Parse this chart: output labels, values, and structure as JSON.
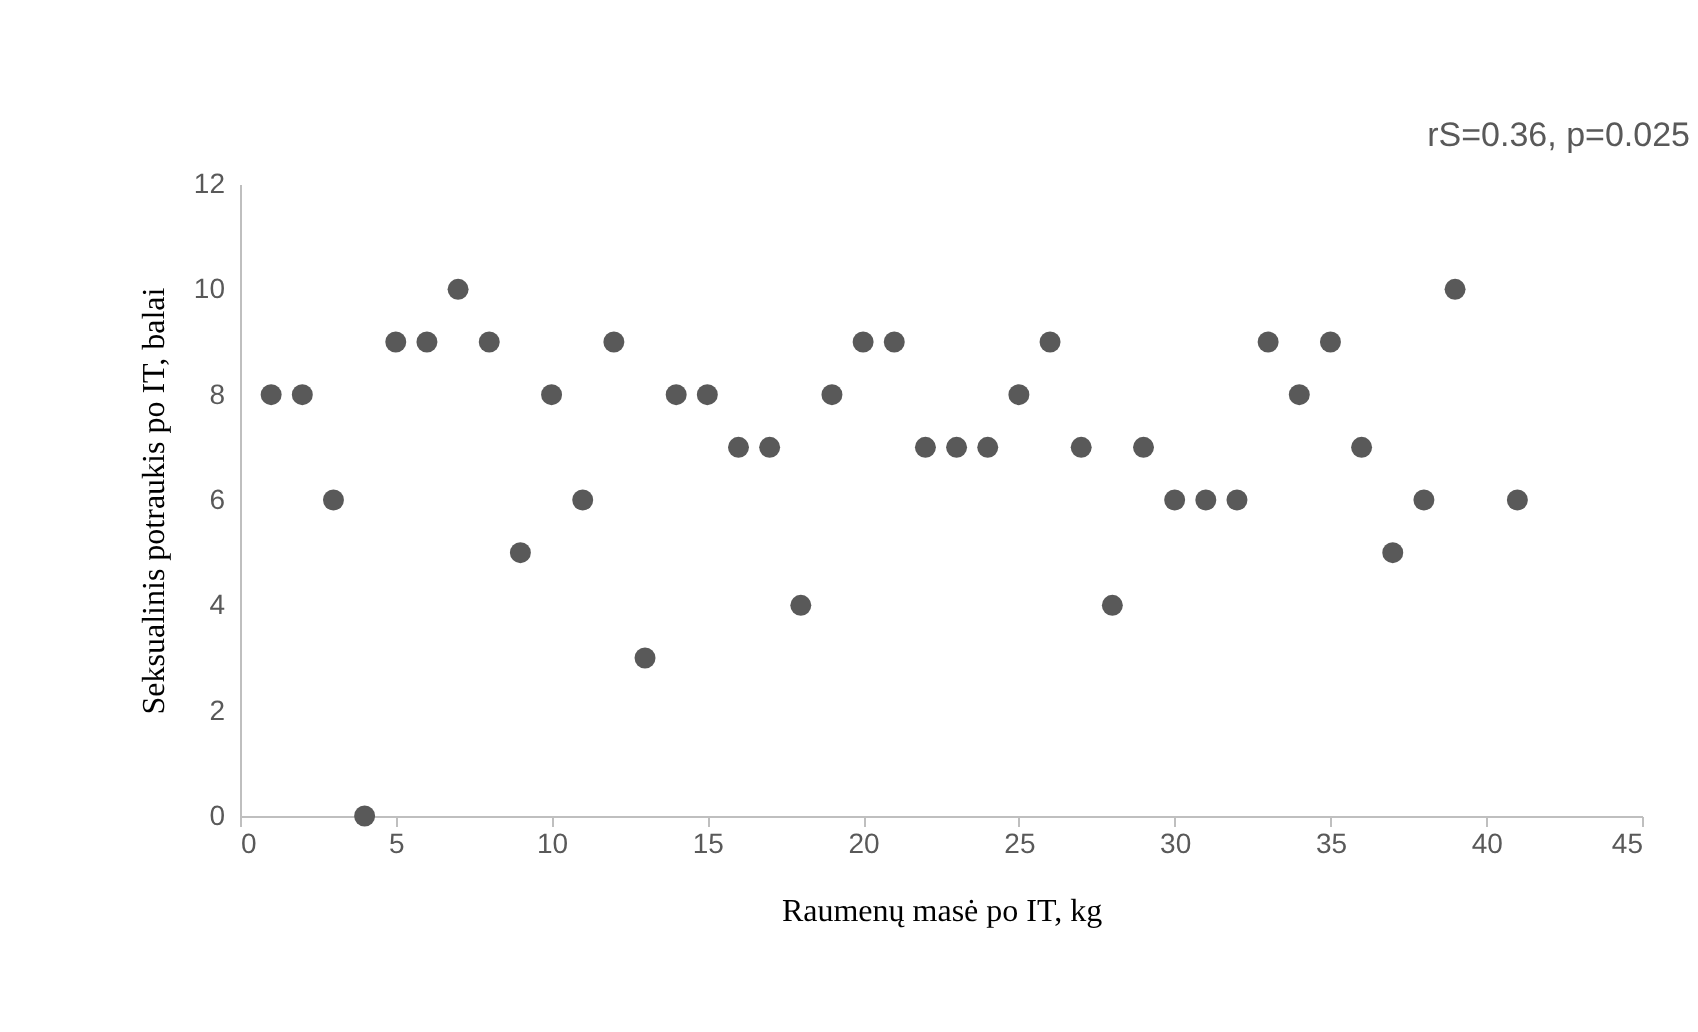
{
  "chart_data": {
    "type": "scatter",
    "xlabel": "Raumenų masė po IT, kg",
    "ylabel": "Seksualinis potraukis po IT, balai",
    "annotations": [
      "rS=0.36, p=0.025"
    ],
    "x": [
      1,
      2,
      3,
      4,
      5,
      6,
      7,
      8,
      9,
      10,
      11,
      12,
      13,
      14,
      15,
      16,
      17,
      18,
      19,
      20,
      21,
      22,
      23,
      24,
      25,
      26,
      27,
      28,
      29,
      30,
      31,
      32,
      33,
      34,
      35,
      36,
      37,
      38,
      39,
      41
    ],
    "series": [
      {
        "color": "#595959",
        "values": [
          8,
          8,
          6,
          0,
          9,
          9,
          10,
          9,
          5,
          8,
          6,
          9,
          3,
          8,
          8,
          7,
          7,
          4,
          8,
          9,
          9,
          7,
          7,
          7,
          8,
          9,
          7,
          4,
          7,
          6,
          6,
          6,
          9,
          8,
          9,
          7,
          5,
          6,
          10,
          6
        ]
      }
    ],
    "xlim": [
      0,
      45
    ],
    "xticks": [
      0,
      5,
      10,
      15,
      20,
      25,
      30,
      35,
      40,
      45
    ],
    "ylim": [
      0,
      12
    ],
    "yticks": [
      0,
      2,
      4,
      6,
      8,
      10,
      12
    ],
    "grid": false,
    "marker": "circle"
  }
}
